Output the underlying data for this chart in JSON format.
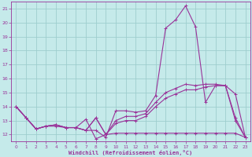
{
  "xlabel": "Windchill (Refroidissement éolien,°C)",
  "background_color": "#c5eaea",
  "line_color": "#993399",
  "grid_color": "#9ecece",
  "x_hours": [
    0,
    1,
    2,
    3,
    4,
    5,
    6,
    7,
    8,
    9,
    10,
    11,
    12,
    13,
    14,
    15,
    16,
    17,
    18,
    19,
    20,
    21,
    22,
    23
  ],
  "series": {
    "s1": [
      14.0,
      13.2,
      12.4,
      12.6,
      12.7,
      12.5,
      12.5,
      12.3,
      12.3,
      11.8,
      13.7,
      13.7,
      13.6,
      13.7,
      14.8,
      19.6,
      20.2,
      21.2,
      19.7,
      14.3,
      15.5,
      15.5,
      14.9,
      11.8
    ],
    "s2": [
      14.0,
      13.2,
      12.4,
      12.6,
      12.7,
      12.5,
      12.5,
      12.3,
      13.2,
      12.0,
      13.0,
      13.3,
      13.3,
      13.5,
      14.3,
      15.0,
      15.3,
      15.6,
      15.5,
      15.6,
      15.6,
      15.5,
      13.2,
      11.8
    ],
    "s3": [
      14.0,
      13.2,
      12.4,
      12.6,
      12.7,
      12.5,
      12.5,
      12.3,
      13.2,
      12.0,
      12.8,
      13.0,
      13.0,
      13.3,
      14.0,
      14.6,
      14.9,
      15.2,
      15.2,
      15.4,
      15.5,
      15.5,
      13.0,
      11.8
    ],
    "s4": [
      14.0,
      13.2,
      12.4,
      12.6,
      12.6,
      12.5,
      12.5,
      13.1,
      11.7,
      12.0,
      12.1,
      12.1,
      12.1,
      12.1,
      12.1,
      12.1,
      12.1,
      12.1,
      12.1,
      12.1,
      12.1,
      12.1,
      12.1,
      11.8
    ]
  },
  "ylim": [
    11.5,
    21.5
  ],
  "yticks": [
    12,
    13,
    14,
    15,
    16,
    17,
    18,
    19,
    20,
    21
  ],
  "xlim": [
    -0.5,
    23.5
  ],
  "xticks": [
    0,
    1,
    2,
    3,
    4,
    5,
    6,
    7,
    8,
    9,
    10,
    11,
    12,
    13,
    14,
    15,
    16,
    17,
    18,
    19,
    20,
    21,
    22,
    23
  ]
}
